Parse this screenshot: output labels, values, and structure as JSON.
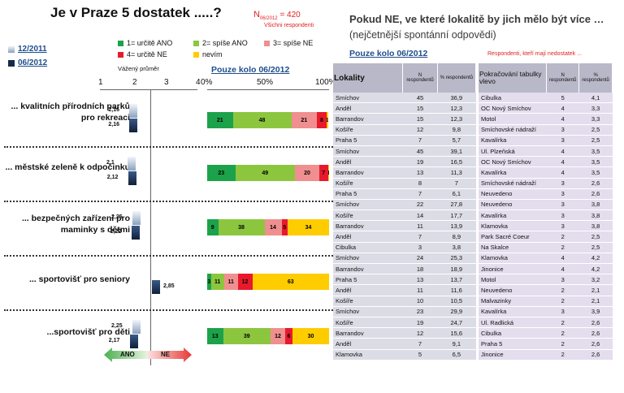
{
  "left": {
    "title": "Je v Praze 5 dostatek .....?",
    "n_prefix": "N",
    "n_sub": "06/2012",
    "n_value": "= 420",
    "n_note": "Všichni respondenti",
    "waves": [
      "12/2011",
      "06/2012"
    ],
    "legend": [
      {
        "label": "1= určitě ANO",
        "color": "#1ca24a"
      },
      {
        "label": "2= spíše ANO",
        "color": "#8cc63f"
      },
      {
        "label": "3= spíše NE",
        "color": "#f08f8f"
      },
      {
        "label": "4= určitě NE",
        "color": "#e8192c"
      },
      {
        "label": "nevím",
        "color": "#ffcc00"
      }
    ],
    "avg_label": "Vážený průměr",
    "avg_ticks": [
      "1",
      "2",
      "3",
      "4"
    ],
    "pct_label": "Pouze kolo 06/2012",
    "pct_ticks": [
      "0%",
      "50%",
      "100%"
    ],
    "arrow_yes": "ANO",
    "arrow_no": "NE"
  },
  "chart_data": {
    "type": "bar",
    "categories": [
      "... kvalitních přírodních parků pro rekreaci",
      "... městské zeleně k odpočinku",
      "... bezpečných zařízení pro maminky s dětmi",
      "... sportovišť pro seniory",
      "...sportovišť pro děti"
    ],
    "average": {
      "xlim": [
        1,
        4
      ],
      "series": [
        {
          "name": "12/2011",
          "values": [
            2.16,
            2.1,
            2.25,
            null,
            2.25
          ],
          "labels": [
            "2,16",
            "2,1",
            "2,25",
            "",
            "2,25"
          ]
        },
        {
          "name": "06/2012",
          "values": [
            2.16,
            2.12,
            2.22,
            2.85,
            2.17
          ],
          "labels": [
            "2,16",
            "2,12",
            "2,22",
            "2,85",
            "2,17"
          ]
        }
      ]
    },
    "stacked_percent": {
      "xlim": [
        0,
        100
      ],
      "series": [
        {
          "name": "1= určitě ANO",
          "values": [
            21,
            23,
            9,
            3,
            13
          ]
        },
        {
          "name": "2= spíše ANO",
          "values": [
            48,
            49,
            38,
            11,
            39
          ]
        },
        {
          "name": "3= spíše NE",
          "values": [
            21,
            20,
            14,
            11,
            12
          ]
        },
        {
          "name": "4= určitě NE",
          "values": [
            8,
            7,
            5,
            12,
            6
          ]
        },
        {
          "name": "nevím",
          "values": [
            1,
            1,
            34,
            63,
            30
          ]
        }
      ],
      "labels": [
        [
          "21",
          "48",
          "21",
          "8",
          "1"
        ],
        [
          "23",
          "49",
          "20",
          "7",
          "1"
        ],
        [
          "9",
          "38",
          "14",
          "5",
          "34"
        ],
        [
          "3",
          "11",
          "11",
          "12",
          "63"
        ],
        [
          "13",
          "39",
          "12",
          "6",
          "30"
        ]
      ]
    }
  },
  "right": {
    "title": "Pokud NE,  ve které lokalitě by jich mělo být více …",
    "subtitle": "(nejčetnější spontánní odpovědi)",
    "link": "Pouze kolo 06/2012",
    "note": "Respondenti, kteří mají nedostatek ...",
    "headers_left": [
      "Lokality",
      "N respondentů",
      "% respondentů"
    ],
    "headers_right": [
      "Pokračování tabulky vlevo",
      "N respondentů",
      "% respondentů"
    ],
    "groups": [
      {
        "left": [
          [
            "Smíchov",
            "45",
            "36,9"
          ],
          [
            "Anděl",
            "15",
            "12,3"
          ],
          [
            "Barrandov",
            "15",
            "12,3"
          ],
          [
            "Košíře",
            "12",
            "9,8"
          ],
          [
            "Praha 5",
            "7",
            "5,7"
          ]
        ],
        "right": [
          [
            "Cibulka",
            "5",
            "4,1"
          ],
          [
            "OC Nový Smíchov",
            "4",
            "3,3"
          ],
          [
            "Motol",
            "4",
            "3,3"
          ],
          [
            "Smíchovské nádraží",
            "3",
            "2,5"
          ],
          [
            "Kavalírka",
            "3",
            "2,5"
          ]
        ]
      },
      {
        "left": [
          [
            "Smíchov",
            "45",
            "39,1"
          ],
          [
            "Anděl",
            "19",
            "16,5"
          ],
          [
            "Barrandov",
            "13",
            "11,3"
          ],
          [
            "Košíře",
            "8",
            "7"
          ],
          [
            "Praha 5",
            "7",
            "6,1"
          ]
        ],
        "right": [
          [
            "Ul. Plzeňská",
            "4",
            "3,5"
          ],
          [
            "OC Nový Smíchov",
            "4",
            "3,5"
          ],
          [
            "Kavalírka",
            "4",
            "3,5"
          ],
          [
            "Smíchovské nádraží",
            "3",
            "2,6"
          ],
          [
            "Neuvedeno",
            "3",
            "2,6"
          ]
        ]
      },
      {
        "left": [
          [
            "Smíchov",
            "22",
            "27,8"
          ],
          [
            "Košíře",
            "14",
            "17,7"
          ],
          [
            "Barrandov",
            "11",
            "13,9"
          ],
          [
            "Anděl",
            "7",
            "8,9"
          ],
          [
            "Cibulka",
            "3",
            "3,8"
          ]
        ],
        "right": [
          [
            "Neuvedeno",
            "3",
            "3,8"
          ],
          [
            "Kavalírka",
            "3",
            "3,8"
          ],
          [
            "Klamovka",
            "3",
            "3,8"
          ],
          [
            "Park Sacré Coeur",
            "2",
            "2,5"
          ],
          [
            "Na Skalce",
            "2",
            "2,5"
          ]
        ]
      },
      {
        "left": [
          [
            "Smíchov",
            "24",
            "25,3"
          ],
          [
            "Barrandov",
            "18",
            "18,9"
          ],
          [
            "Praha 5",
            "13",
            "13,7"
          ],
          [
            "Anděl",
            "11",
            "11,6"
          ],
          [
            "Košíře",
            "10",
            "10,5"
          ]
        ],
        "right": [
          [
            "Klamovka",
            "4",
            "4,2"
          ],
          [
            "Jinonice",
            "4",
            "4,2"
          ],
          [
            "Motol",
            "3",
            "3,2"
          ],
          [
            "Neuvedeno",
            "2",
            "2,1"
          ],
          [
            "Malvazinky",
            "2",
            "2,1"
          ]
        ]
      },
      {
        "left": [
          [
            "Smíchov",
            "23",
            "29,9"
          ],
          [
            "Košíře",
            "19",
            "24,7"
          ],
          [
            "Barrandov",
            "12",
            "15,6"
          ],
          [
            "Anděl",
            "7",
            "9,1"
          ],
          [
            "Klamovka",
            "5",
            "6,5"
          ]
        ],
        "right": [
          [
            "Kavalírka",
            "3",
            "3,9"
          ],
          [
            "Ul. Radlická",
            "2",
            "2,6"
          ],
          [
            "Cibulka",
            "2",
            "2,6"
          ],
          [
            "Praha 5",
            "2",
            "2,6"
          ],
          [
            "Jinonice",
            "2",
            "2,6"
          ]
        ]
      }
    ]
  }
}
